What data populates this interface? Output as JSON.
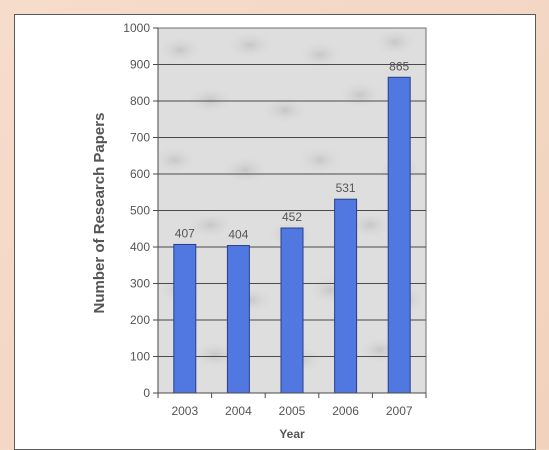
{
  "chart_data": {
    "type": "bar",
    "categories": [
      "2003",
      "2004",
      "2005",
      "2006",
      "2007"
    ],
    "values": [
      407,
      404,
      452,
      531,
      865
    ],
    "data_labels": [
      "407",
      "404",
      "452",
      "531",
      "865"
    ],
    "xlabel": "Year",
    "ylabel": "Number of Research Papers",
    "ylim": [
      0,
      1000
    ],
    "yticks": [
      "0",
      "100",
      "200",
      "300",
      "400",
      "500",
      "600",
      "700",
      "800",
      "900",
      "1000"
    ],
    "grid": true,
    "bar_color": "#5078e0",
    "bar_edge_color": "#2a3f8a",
    "plot_background": "#d9d9d9"
  }
}
